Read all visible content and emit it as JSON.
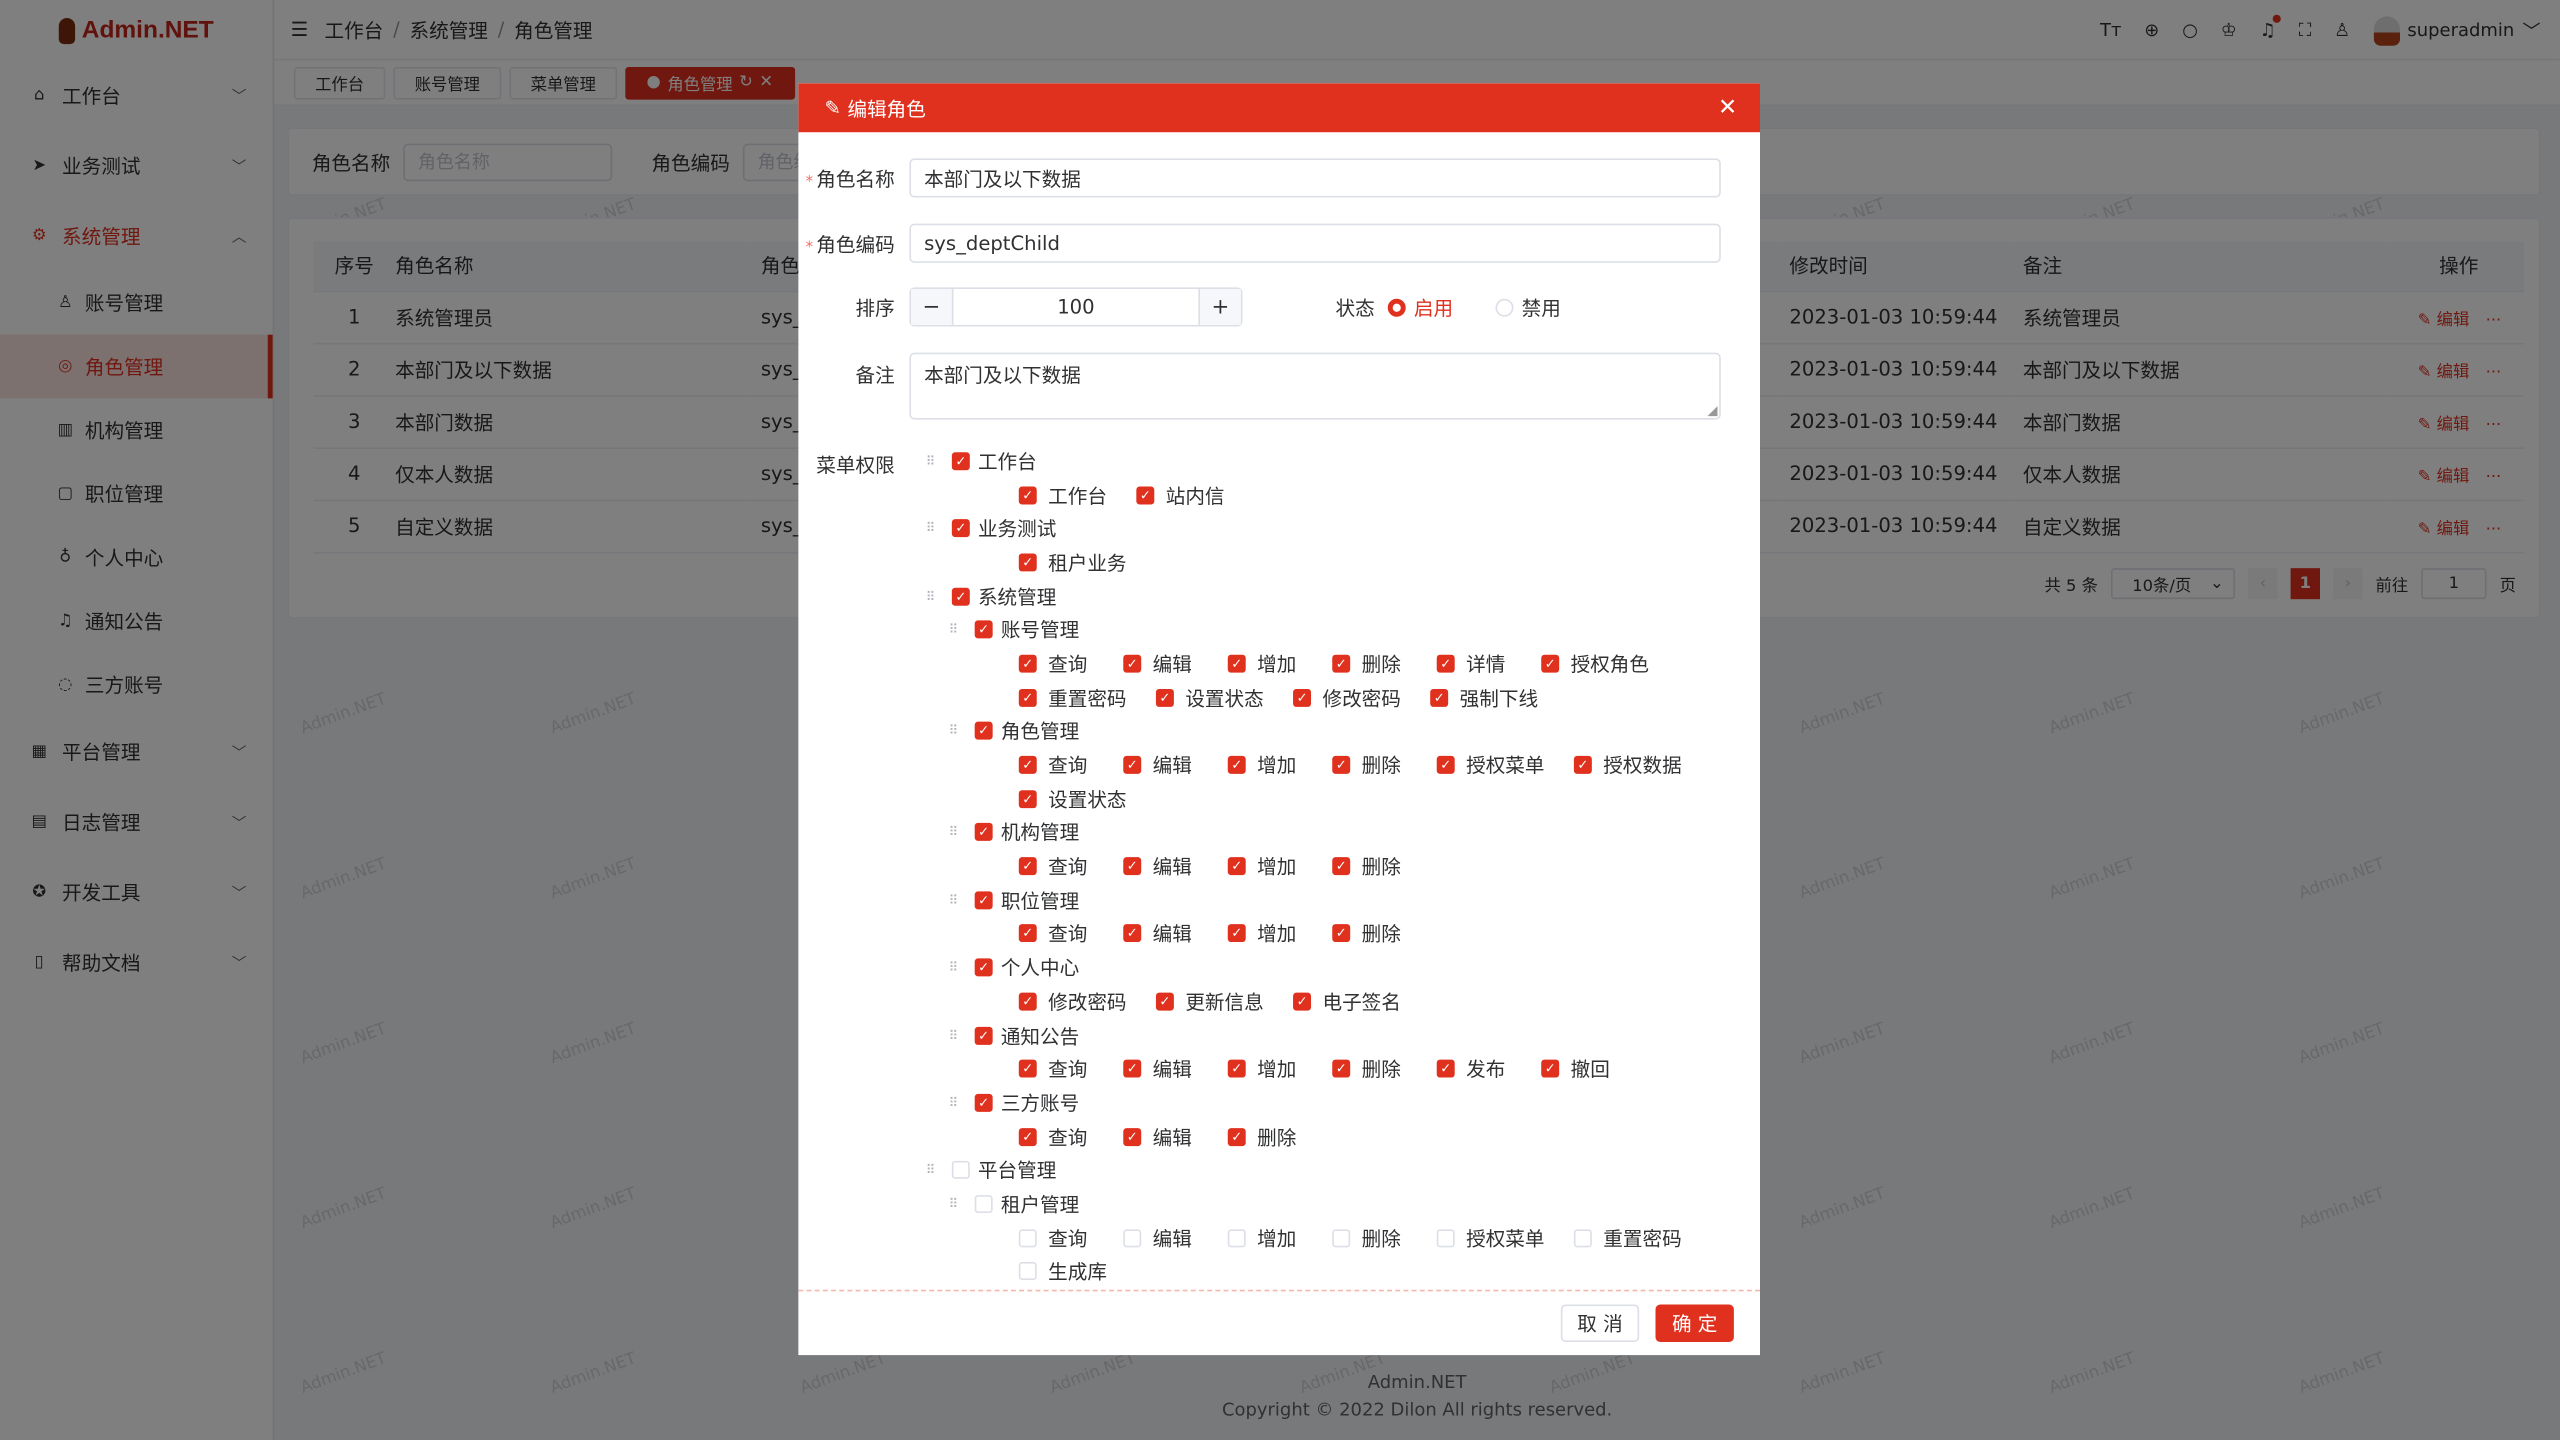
{
  "app": {
    "logo": "Admin.NET",
    "watermark": "Admin.NET"
  },
  "sidebar": {
    "items": [
      {
        "label": "工作台",
        "icon": "home-icon",
        "glyph": "⌂",
        "open": false
      },
      {
        "label": "业务测试",
        "icon": "send-icon",
        "glyph": "➤",
        "open": false
      },
      {
        "label": "系统管理",
        "icon": "gear-icon",
        "glyph": "⚙",
        "open": true,
        "children": [
          {
            "label": "账号管理",
            "icon": "user-icon",
            "glyph": "♙"
          },
          {
            "label": "角色管理",
            "icon": "role-icon",
            "glyph": "◎",
            "active": true
          },
          {
            "label": "机构管理",
            "icon": "org-icon",
            "glyph": "▥"
          },
          {
            "label": "职位管理",
            "icon": "post-icon",
            "glyph": "▢"
          },
          {
            "label": "个人中心",
            "icon": "medal-icon",
            "glyph": "♁"
          },
          {
            "label": "通知公告",
            "icon": "bell-icon",
            "glyph": "♫"
          },
          {
            "label": "三方账号",
            "icon": "chat-icon",
            "glyph": "◌"
          }
        ]
      },
      {
        "label": "平台管理",
        "icon": "grid-icon",
        "glyph": "▦",
        "open": false
      },
      {
        "label": "日志管理",
        "icon": "log-icon",
        "glyph": "▤",
        "open": false
      },
      {
        "label": "开发工具",
        "icon": "tool-icon",
        "glyph": "✪",
        "open": false
      },
      {
        "label": "帮助文档",
        "icon": "doc-icon",
        "glyph": "▯",
        "open": false
      }
    ]
  },
  "header": {
    "breadcrumb": [
      "工作台",
      "系统管理",
      "角色管理"
    ],
    "user": "superadmin",
    "icons": [
      {
        "name": "font-size-icon",
        "glyph": "Tт"
      },
      {
        "name": "locate-icon",
        "glyph": "⊕"
      },
      {
        "name": "search-icon",
        "glyph": "○"
      },
      {
        "name": "skin-icon",
        "glyph": "♔"
      },
      {
        "name": "bell-icon",
        "glyph": "♫",
        "dot": true
      },
      {
        "name": "fullscreen-icon",
        "glyph": "⛶"
      },
      {
        "name": "user-icon",
        "glyph": "♙"
      }
    ]
  },
  "tabs": [
    {
      "label": "工作台"
    },
    {
      "label": "账号管理"
    },
    {
      "label": "菜单管理"
    },
    {
      "label": "角色管理",
      "active": true
    }
  ],
  "search": {
    "name_label": "角色名称",
    "name_placeholder": "角色名称",
    "code_label": "角色编码",
    "code_placeholder": "角色编"
  },
  "table": {
    "headers": [
      "序号",
      "角色名称",
      "角色编",
      "修改时间",
      "备注",
      "操作"
    ],
    "rows": [
      {
        "index": "1",
        "name": "系统管理员",
        "code": "sys_",
        "modified": "2023-01-03 10:59:44",
        "remark": "系统管理员"
      },
      {
        "index": "2",
        "name": "本部门及以下数据",
        "code": "sys_",
        "modified": "2023-01-03 10:59:44",
        "remark": "本部门及以下数据"
      },
      {
        "index": "3",
        "name": "本部门数据",
        "code": "sys_",
        "modified": "2023-01-03 10:59:44",
        "remark": "本部门数据"
      },
      {
        "index": "4",
        "name": "仅本人数据",
        "code": "sys_",
        "modified": "2023-01-03 10:59:44",
        "remark": "仅本人数据"
      },
      {
        "index": "5",
        "name": "自定义数据",
        "code": "sys_",
        "modified": "2023-01-03 10:59:44",
        "remark": "自定义数据"
      }
    ],
    "edit_label": "编辑",
    "more_label": "···"
  },
  "pagination": {
    "total": "共 5 条",
    "page_size": "10条/页",
    "current": "1",
    "goto_label": "前往",
    "goto_value": "1",
    "page_suffix": "页"
  },
  "footer": {
    "line1": "Admin.NET",
    "line2": "Copyright © 2022 Dilon All rights reserved."
  },
  "modal": {
    "title": "编辑角色",
    "name_label": "角色名称",
    "name_value": "本部门及以下数据",
    "code_label": "角色编码",
    "code_value": "sys_deptChild",
    "order_label": "排序",
    "order_value": "100",
    "status_label": "状态",
    "status_options": [
      "启用",
      "禁用"
    ],
    "status_selected": "启用",
    "remark_label": "备注",
    "remark_value": "本部门及以下数据",
    "menu_label": "菜单权限",
    "cancel": "取 消",
    "confirm": "确 定",
    "tree": [
      {
        "label": "工作台",
        "checked": true,
        "leaves": [
          {
            "label": "工作台",
            "checked": true
          },
          {
            "label": "站内信",
            "checked": true
          }
        ]
      },
      {
        "label": "业务测试",
        "checked": true,
        "leaves": [
          {
            "label": "租户业务",
            "checked": true
          }
        ]
      },
      {
        "label": "系统管理",
        "checked": true,
        "children": [
          {
            "label": "账号管理",
            "checked": true,
            "leaves": [
              "查询",
              "编辑",
              "增加",
              "删除",
              "详情",
              "授权角色",
              "重置密码",
              "设置状态",
              "修改密码",
              "强制下线"
            ]
          },
          {
            "label": "角色管理",
            "checked": true,
            "leaves": [
              "查询",
              "编辑",
              "增加",
              "删除",
              "授权菜单",
              "授权数据",
              "设置状态"
            ]
          },
          {
            "label": "机构管理",
            "checked": true,
            "leaves": [
              "查询",
              "编辑",
              "增加",
              "删除"
            ]
          },
          {
            "label": "职位管理",
            "checked": true,
            "leaves": [
              "查询",
              "编辑",
              "增加",
              "删除"
            ]
          },
          {
            "label": "个人中心",
            "checked": true,
            "leaves": [
              "修改密码",
              "更新信息",
              "电子签名"
            ]
          },
          {
            "label": "通知公告",
            "checked": true,
            "leaves": [
              "查询",
              "编辑",
              "增加",
              "删除",
              "发布",
              "撤回"
            ]
          },
          {
            "label": "三方账号",
            "checked": true,
            "leaves": [
              "查询",
              "编辑",
              "删除"
            ]
          }
        ]
      },
      {
        "label": "平台管理",
        "checked": false,
        "children": [
          {
            "label": "租户管理",
            "checked": false,
            "leaves": [
              "查询",
              "编辑",
              "增加",
              "删除",
              "授权菜单",
              "重置密码",
              "生成库"
            ]
          }
        ]
      }
    ]
  },
  "colors": {
    "primary": "#e0301e",
    "overlay": "rgba(0,0,0,0.5)"
  }
}
